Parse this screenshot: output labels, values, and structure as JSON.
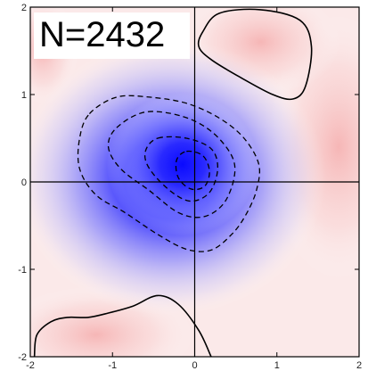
{
  "chart_data": {
    "type": "heatmap",
    "title": "",
    "xlabel": "",
    "ylabel": "",
    "xlim": [
      -2,
      2
    ],
    "ylim": [
      -2,
      2
    ],
    "x_ticks": [
      -2,
      -1,
      0,
      1,
      2
    ],
    "y_ticks": [
      -2,
      -1,
      0,
      1,
      2
    ],
    "grid": false,
    "annotation": "N=2432",
    "colormap": {
      "negative": "#1a1aff",
      "zero": "#ffffff",
      "positive": "#f08080"
    },
    "crosshair_at": [
      0,
      0
    ],
    "contours": [
      {
        "style": "dashed",
        "level": "negative",
        "points": [
          [
            -1.28,
            0.78
          ],
          [
            -0.95,
            0.97
          ],
          [
            -0.55,
            0.97
          ],
          [
            -0.1,
            0.9
          ],
          [
            0.3,
            0.73
          ],
          [
            0.6,
            0.5
          ],
          [
            0.78,
            0.2
          ],
          [
            0.75,
            -0.1
          ],
          [
            0.62,
            -0.38
          ],
          [
            0.45,
            -0.6
          ],
          [
            0.2,
            -0.78
          ],
          [
            -0.1,
            -0.77
          ],
          [
            -0.45,
            -0.6
          ],
          [
            -0.85,
            -0.35
          ],
          [
            -1.2,
            -0.15
          ],
          [
            -1.4,
            0.15
          ],
          [
            -1.4,
            0.5
          ]
        ]
      },
      {
        "style": "dashed",
        "level": "negative",
        "points": [
          [
            -0.95,
            0.62
          ],
          [
            -0.6,
            0.8
          ],
          [
            -0.15,
            0.75
          ],
          [
            0.2,
            0.58
          ],
          [
            0.45,
            0.3
          ],
          [
            0.48,
            0.05
          ],
          [
            0.35,
            -0.25
          ],
          [
            0.1,
            -0.4
          ],
          [
            -0.2,
            -0.35
          ],
          [
            -0.55,
            -0.1
          ],
          [
            -0.9,
            0.15
          ],
          [
            -1.05,
            0.4
          ]
        ]
      },
      {
        "style": "dashed",
        "level": "negative",
        "points": [
          [
            -0.45,
            0.5
          ],
          [
            -0.1,
            0.5
          ],
          [
            0.2,
            0.38
          ],
          [
            0.28,
            0.15
          ],
          [
            0.18,
            -0.12
          ],
          [
            -0.05,
            -0.22
          ],
          [
            -0.3,
            -0.1
          ],
          [
            -0.55,
            0.15
          ],
          [
            -0.6,
            0.35
          ]
        ]
      },
      {
        "style": "dashed",
        "level": "negative",
        "points": [
          [
            -0.1,
            0.35
          ],
          [
            0.1,
            0.3
          ],
          [
            0.18,
            0.12
          ],
          [
            0.12,
            -0.05
          ],
          [
            -0.05,
            -0.08
          ],
          [
            -0.2,
            0.05
          ],
          [
            -0.22,
            0.25
          ]
        ]
      },
      {
        "style": "solid",
        "level": "positive",
        "points": [
          [
            0.1,
            1.72
          ],
          [
            0.3,
            1.93
          ],
          [
            0.8,
            1.97
          ],
          [
            1.28,
            1.85
          ],
          [
            1.42,
            1.55
          ],
          [
            1.35,
            1.1
          ],
          [
            1.2,
            0.95
          ],
          [
            0.95,
            1.0
          ],
          [
            0.55,
            1.2
          ],
          [
            0.2,
            1.4
          ],
          [
            0.05,
            1.55
          ]
        ]
      },
      {
        "style": "solid",
        "level": "positive",
        "points": [
          [
            -1.95,
            -2.0
          ],
          [
            -1.92,
            -1.75
          ],
          [
            -1.75,
            -1.6
          ],
          [
            -1.55,
            -1.55
          ],
          [
            -1.3,
            -1.55
          ],
          [
            -1.05,
            -1.5
          ],
          [
            -0.75,
            -1.42
          ],
          [
            -0.45,
            -1.3
          ],
          [
            -0.2,
            -1.4
          ],
          [
            0.05,
            -1.7
          ],
          [
            0.2,
            -2.0
          ]
        ]
      },
      {
        "style": "solid",
        "level": "positive",
        "points": [
          [
            -1.88,
            1.55
          ],
          [
            -1.75,
            1.6
          ],
          [
            -1.68,
            1.55
          ],
          [
            -1.8,
            1.5
          ]
        ]
      }
    ]
  }
}
